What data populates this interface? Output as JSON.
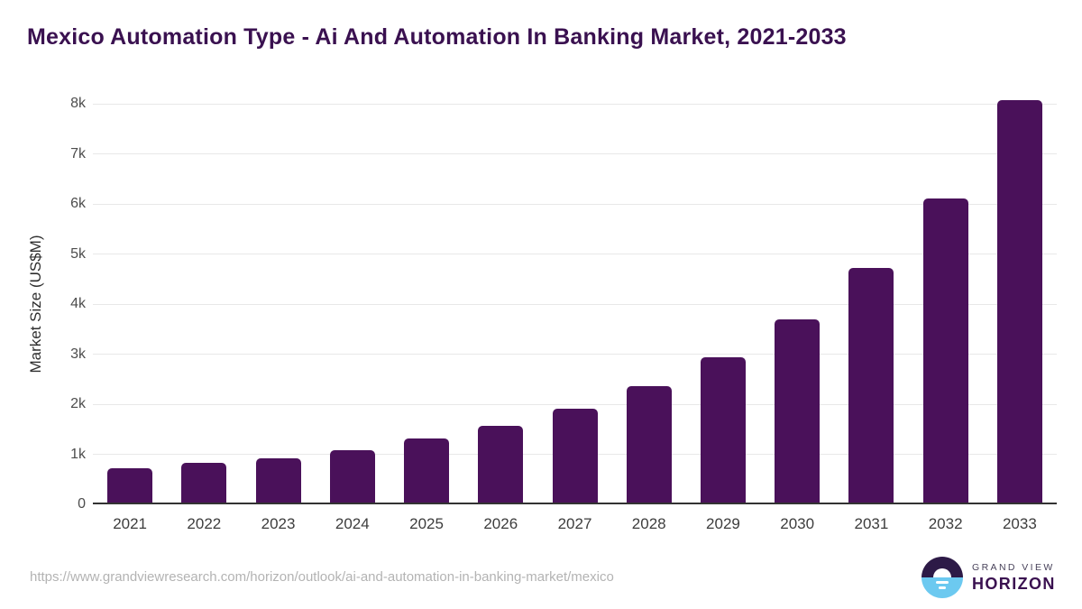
{
  "title": "Mexico Automation Type - Ai And Automation In Banking Market, 2021-2033",
  "chart_data": {
    "type": "bar",
    "title": "Mexico Automation Type - Ai And Automation In Banking Market, 2021-2033",
    "categories": [
      "2021",
      "2022",
      "2023",
      "2024",
      "2025",
      "2026",
      "2027",
      "2028",
      "2029",
      "2030",
      "2031",
      "2032",
      "2033"
    ],
    "values": [
      720,
      830,
      920,
      1080,
      1310,
      1570,
      1910,
      2360,
      2930,
      3690,
      4720,
      6110,
      8070
    ],
    "xlabel": "",
    "ylabel": "Market Size (US$M)",
    "ylim": [
      0,
      8000
    ],
    "ytick_values": [
      0,
      1000,
      2000,
      3000,
      4000,
      5000,
      6000,
      7000,
      8000
    ],
    "ytick_labels": [
      "0",
      "1k",
      "2k",
      "3k",
      "4k",
      "5k",
      "6k",
      "7k",
      "8k"
    ],
    "grid": true,
    "legend": false,
    "bar_color": "#4a115a"
  },
  "footer": {
    "url": "https://www.grandviewresearch.com/horizon/outlook/ai-and-automation-in-banking-market/mexico",
    "logo": {
      "line1": "GRAND VIEW",
      "line2": "HORIZON",
      "icon": "horizon-sun-icon",
      "icon_top_color": "#2d1a47",
      "icon_bottom_color": "#6cc9f0"
    }
  },
  "colors": {
    "title_purple": "#3a1150",
    "bar_purple": "#4a115a",
    "gridline": "#e8e8e8",
    "axis": "#333333",
    "ytick_text": "#4d4d4d",
    "xtick_text": "#3d3d3d",
    "url_text": "#b3b3b3"
  }
}
